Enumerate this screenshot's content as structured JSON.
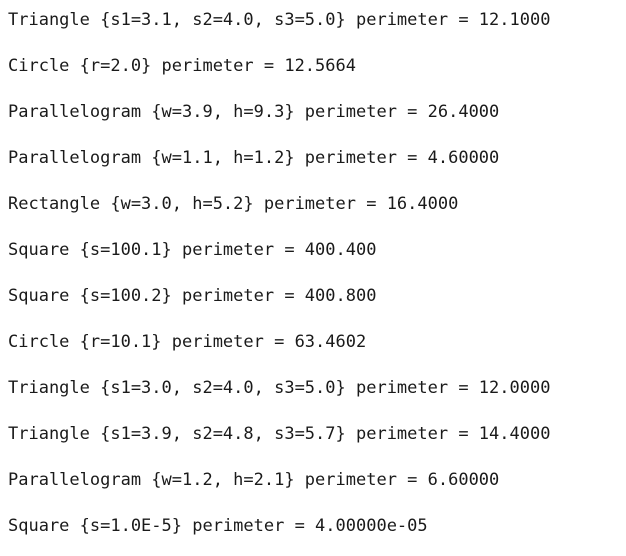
{
  "output": {
    "lines": [
      "Triangle {s1=3.1, s2=4.0, s3=5.0} perimeter = 12.1000",
      "Circle {r=2.0} perimeter = 12.5664",
      "Parallelogram {w=3.9, h=9.3} perimeter = 26.4000",
      "Parallelogram {w=1.1, h=1.2} perimeter = 4.60000",
      "Rectangle {w=3.0, h=5.2} perimeter = 16.4000",
      "Square {s=100.1} perimeter = 400.400",
      "Square {s=100.2} perimeter = 400.800",
      "Circle {r=10.1} perimeter = 63.4602",
      "Triangle {s1=3.0, s2=4.0, s3=5.0} perimeter = 12.0000",
      "Triangle {s1=3.9, s2=4.8, s3=5.7} perimeter = 14.4000",
      "Parallelogram {w=1.2, h=2.1} perimeter = 6.60000",
      "Square {s=1.0E-5} perimeter = 4.00000e-05"
    ]
  }
}
